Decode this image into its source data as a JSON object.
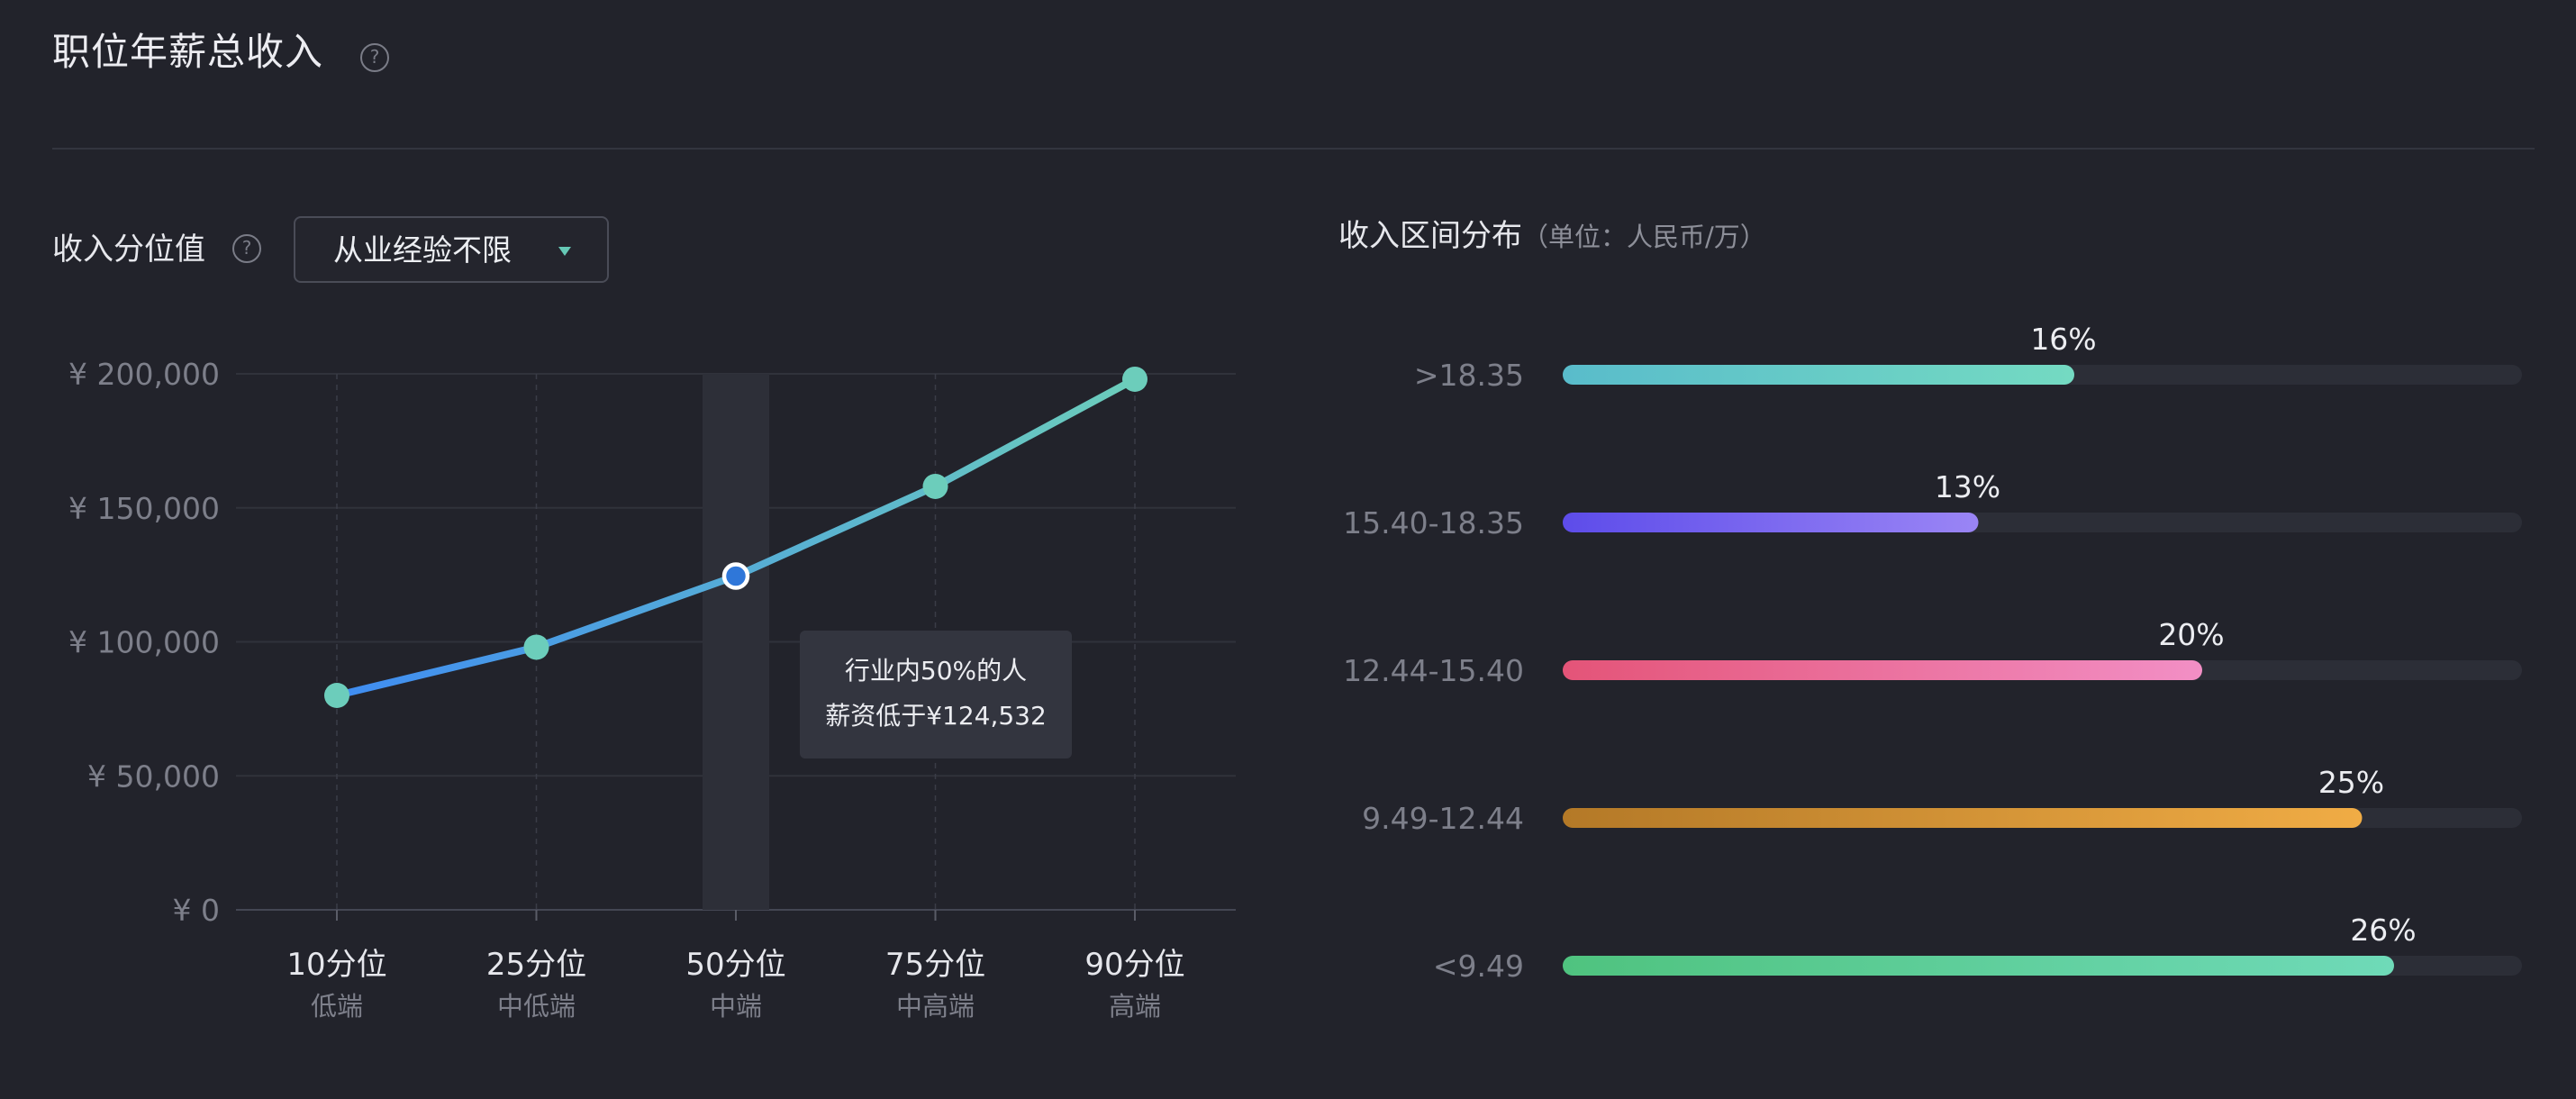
{
  "header": {
    "title": "职位年薪总收入",
    "help_glyph": "?"
  },
  "left_panel": {
    "label": "收入分位值",
    "help_glyph": "?",
    "experience_filter": {
      "selected": "从业经验不限"
    }
  },
  "right_panel": {
    "label": "收入区间分布",
    "unit_note": "（单位：人民币/万）"
  },
  "tooltip": {
    "line1": "行业内50%的人",
    "line2": "薪资低于¥124,532"
  },
  "colors": {
    "background": "#22232b",
    "line_start": "#3f8cf2",
    "line_end": "#6ccdbb",
    "point": "#6ccdbb",
    "track": "#2c2e37"
  },
  "chart_data": [
    {
      "type": "line",
      "title": "收入分位值",
      "x": [
        "10分位",
        "25分位",
        "50分位",
        "75分位",
        "90分位"
      ],
      "x_sublabels": [
        "低端",
        "中低端",
        "中端",
        "中高端",
        "高端"
      ],
      "y_tick_labels": [
        "¥ 0",
        "¥ 50,000",
        "¥ 100,000",
        "¥ 150,000",
        "¥ 200,000"
      ],
      "y_ticks": [
        0,
        50000,
        100000,
        150000,
        200000
      ],
      "series": [
        {
          "values": [
            80000,
            98000,
            124532,
            158000,
            198000
          ]
        }
      ],
      "highlighted_index": 2,
      "ylim": [
        0,
        200000
      ],
      "grid": true
    },
    {
      "type": "bar",
      "orientation": "horizontal",
      "title": "收入区间分布",
      "categories": [
        ">18.35",
        "15.40-18.35",
        "12.44-15.40",
        "9.49-12.44",
        "<9.49"
      ],
      "values": [
        16,
        13,
        20,
        25,
        26
      ],
      "value_labels": [
        "16%",
        "13%",
        "20%",
        "25%",
        "26%"
      ],
      "colors": [
        [
          "#59bccb",
          "#74dac2"
        ],
        [
          "#5d4cea",
          "#9a85f5"
        ],
        [
          "#e45478",
          "#f28fc5"
        ],
        [
          "#b47927",
          "#f0ac45"
        ],
        [
          "#4fc37f",
          "#6fdab8"
        ]
      ],
      "xlim": [
        0,
        30
      ]
    }
  ]
}
